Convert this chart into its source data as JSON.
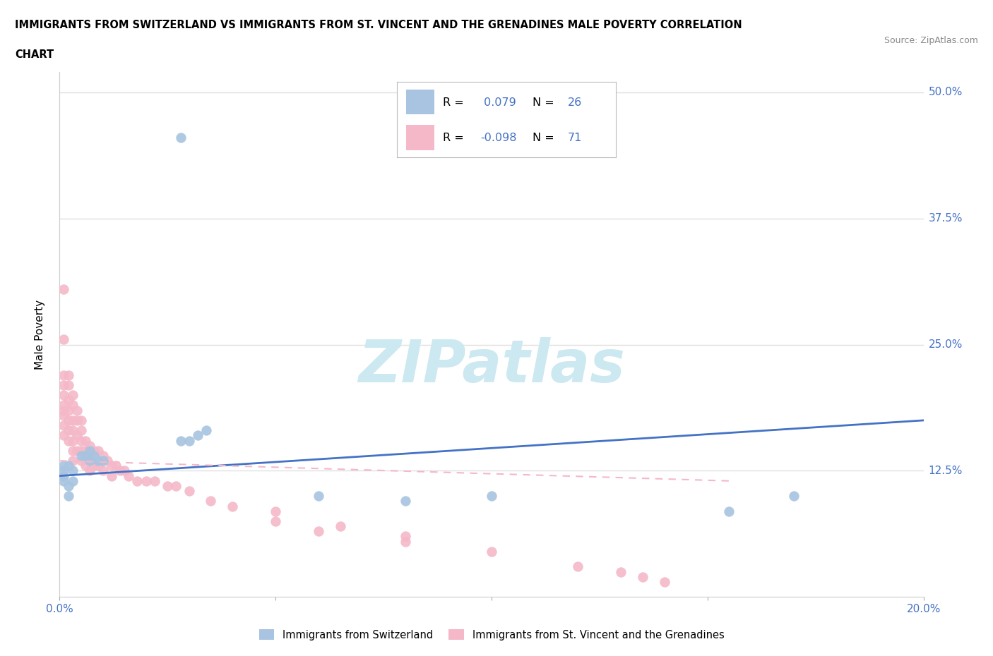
{
  "title_line1": "IMMIGRANTS FROM SWITZERLAND VS IMMIGRANTS FROM ST. VINCENT AND THE GRENADINES MALE POVERTY CORRELATION",
  "title_line2": "CHART",
  "source": "Source: ZipAtlas.com",
  "ylabel": "Male Poverty",
  "xlim": [
    0.0,
    0.2
  ],
  "ylim": [
    0.0,
    0.52
  ],
  "yticks": [
    0.0,
    0.125,
    0.25,
    0.375,
    0.5
  ],
  "ytick_labels": [
    "",
    "12.5%",
    "25.0%",
    "37.5%",
    "50.0%"
  ],
  "xticks": [
    0.0,
    0.05,
    0.1,
    0.15,
    0.2
  ],
  "xtick_labels": [
    "0.0%",
    "",
    "",
    "",
    "20.0%"
  ],
  "R_swiss": 0.079,
  "N_swiss": 26,
  "R_svg": -0.098,
  "N_svg": 71,
  "swiss_color": "#a8c4e0",
  "svg_color": "#f4b8c8",
  "trend_swiss_color": "#4472c4",
  "trend_svg_color": "#f4b8c8",
  "watermark": "ZIPatlas",
  "watermark_color": "#cce8f0",
  "grid_color": "#e0e0e0",
  "bg_color": "#ffffff",
  "swiss_scatter_x": [
    0.028,
    0.03,
    0.032,
    0.034,
    0.005,
    0.006,
    0.007,
    0.007,
    0.008,
    0.009,
    0.01,
    0.002,
    0.003,
    0.001,
    0.001,
    0.001,
    0.001,
    0.002,
    0.002,
    0.003,
    0.06,
    0.08,
    0.1,
    0.155,
    0.17
  ],
  "swiss_scatter_y": [
    0.155,
    0.155,
    0.16,
    0.165,
    0.14,
    0.14,
    0.135,
    0.145,
    0.14,
    0.135,
    0.135,
    0.13,
    0.125,
    0.125,
    0.13,
    0.12,
    0.115,
    0.11,
    0.1,
    0.115,
    0.1,
    0.095,
    0.1,
    0.085,
    0.1
  ],
  "swiss_outlier_x": [
    0.028
  ],
  "swiss_outlier_y": [
    0.455
  ],
  "svg_scatter_x": [
    0.001,
    0.001,
    0.001,
    0.001,
    0.001,
    0.001,
    0.001,
    0.001,
    0.001,
    0.001,
    0.002,
    0.002,
    0.002,
    0.002,
    0.002,
    0.002,
    0.002,
    0.003,
    0.003,
    0.003,
    0.003,
    0.003,
    0.003,
    0.003,
    0.004,
    0.004,
    0.004,
    0.004,
    0.005,
    0.005,
    0.005,
    0.005,
    0.005,
    0.006,
    0.006,
    0.006,
    0.007,
    0.007,
    0.007,
    0.008,
    0.008,
    0.009,
    0.009,
    0.01,
    0.01,
    0.011,
    0.012,
    0.012,
    0.013,
    0.014,
    0.015,
    0.016,
    0.018,
    0.02,
    0.022,
    0.025,
    0.027,
    0.03,
    0.035,
    0.04,
    0.05,
    0.06,
    0.08,
    0.1,
    0.12,
    0.13,
    0.135,
    0.14,
    0.05,
    0.065,
    0.08
  ],
  "svg_scatter_y": [
    0.305,
    0.255,
    0.22,
    0.21,
    0.2,
    0.19,
    0.185,
    0.18,
    0.17,
    0.16,
    0.22,
    0.21,
    0.195,
    0.185,
    0.175,
    0.165,
    0.155,
    0.2,
    0.19,
    0.175,
    0.165,
    0.155,
    0.145,
    0.135,
    0.185,
    0.175,
    0.16,
    0.145,
    0.175,
    0.165,
    0.155,
    0.145,
    0.135,
    0.155,
    0.145,
    0.13,
    0.15,
    0.14,
    0.125,
    0.145,
    0.13,
    0.145,
    0.13,
    0.14,
    0.125,
    0.135,
    0.13,
    0.12,
    0.13,
    0.125,
    0.125,
    0.12,
    0.115,
    0.115,
    0.115,
    0.11,
    0.11,
    0.105,
    0.095,
    0.09,
    0.075,
    0.065,
    0.055,
    0.045,
    0.03,
    0.025,
    0.02,
    0.015,
    0.085,
    0.07,
    0.06
  ],
  "swiss_trend_x": [
    0.0,
    0.2
  ],
  "swiss_trend_y": [
    0.12,
    0.175
  ],
  "svg_trend_x": [
    0.0,
    0.155
  ],
  "svg_trend_y": [
    0.135,
    0.115
  ]
}
